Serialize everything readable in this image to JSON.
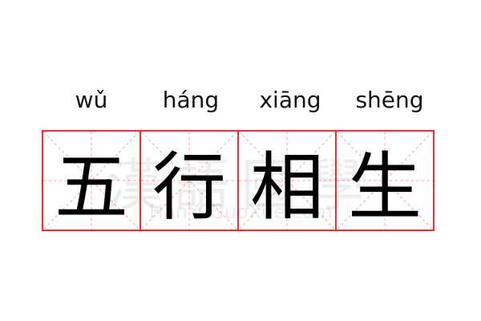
{
  "pinyin": [
    "wǔ",
    "háng",
    "xiāng",
    "shēng"
  ],
  "characters": [
    "五",
    "行",
    "相",
    "生"
  ],
  "watermark": {
    "main": "漢語國學",
    "url": "HanYuGuoXue.com"
  },
  "colors": {
    "grid_border": "#f03030",
    "guide_lines": "#f5a0a0",
    "text": "#000000"
  }
}
